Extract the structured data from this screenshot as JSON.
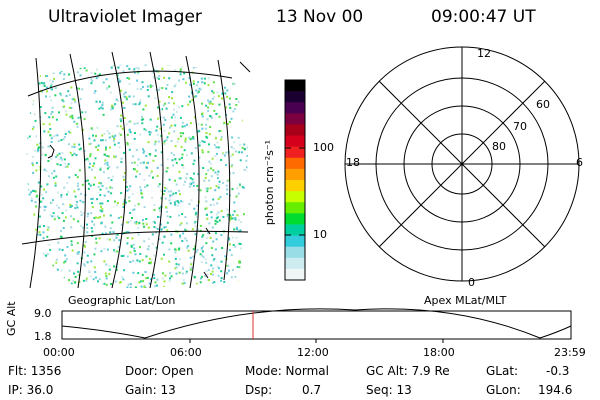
{
  "header": {
    "instrument": "Ultraviolet Imager",
    "date": "13 Nov 00",
    "time": "09:00:47 UT"
  },
  "geo_panel": {
    "caption": "Geographic Lat/Lon"
  },
  "colorbar": {
    "unit_label": "photon cm⁻²s⁻¹",
    "ticks": [
      "100",
      "10"
    ],
    "colors": [
      "#000000",
      "#1a0030",
      "#4a0050",
      "#7a0040",
      "#a8001a",
      "#d4001c",
      "#f02020",
      "#ff6a00",
      "#ffa000",
      "#ffd000",
      "#c8ff00",
      "#66ee00",
      "#00dd30",
      "#00d0a0",
      "#33ccdd",
      "#99dde6",
      "#ccecef",
      "#f0f6f6"
    ]
  },
  "polar_panel": {
    "caption": "Apex MLat/MLT",
    "mlt_labels": [
      "12",
      "18",
      "6",
      "0"
    ],
    "mlat_labels": [
      "60",
      "70",
      "80"
    ]
  },
  "orbit_plot": {
    "ylabel": "GC Alt",
    "y_ticks": [
      "9.0",
      "1.8"
    ],
    "x_ticks": [
      "00:00",
      "06:00",
      "12:00",
      "18:00",
      "23:59"
    ],
    "marker_time": "09:00:47",
    "marker_color": "#e03030"
  },
  "info": {
    "flt": "Flt: 1356",
    "ip": "IP: 36.0",
    "door": "Door: Open",
    "gain": "Gain: 13",
    "mode": "Mode: Normal",
    "dsp_label": "Dsp:",
    "dsp_value": "0.7",
    "gcalt": "GC Alt: 7.9 Re",
    "seq": "Seq: 13",
    "glat_label": "GLat:",
    "glat_value": "-0.3",
    "glon_label": "GLon:",
    "glon_value": "194.6"
  }
}
